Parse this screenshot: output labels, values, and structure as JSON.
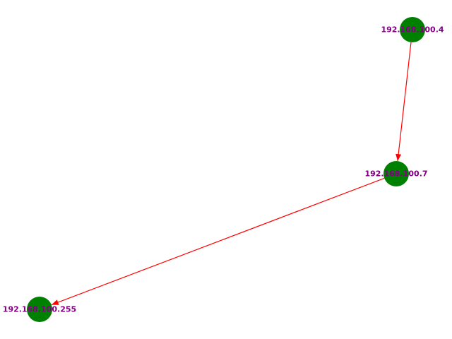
{
  "graph": {
    "node_color": "#008000",
    "edge_color": "#ff0000",
    "label_color": "#800080",
    "nodes": [
      {
        "id": "n1",
        "label": "192.168.100.4"
      },
      {
        "id": "n2",
        "label": "192.168.100.7"
      },
      {
        "id": "n3",
        "label": "192.168.100.255"
      }
    ],
    "edges": [
      {
        "source": "n1",
        "target": "n2"
      },
      {
        "source": "n2",
        "target": "n3"
      }
    ]
  }
}
